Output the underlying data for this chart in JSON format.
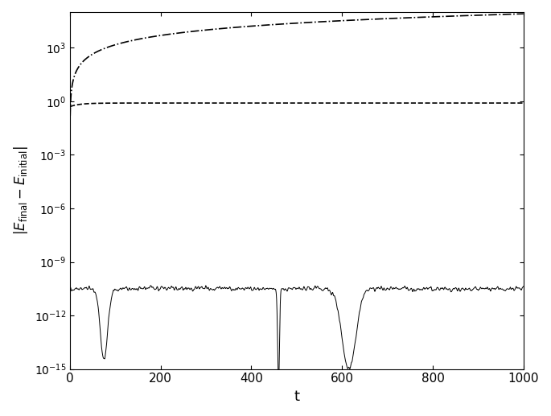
{
  "title": "",
  "xlabel": "t",
  "ylabel": "|E_{final}-E_{initial}|",
  "xlim": [
    0,
    1000
  ],
  "ylim_log": [
    -15,
    5
  ],
  "background_color": "#ffffff",
  "line_color": "#000000",
  "figsize": [
    6.85,
    5.17
  ],
  "dpi": 100,
  "seed": 42,
  "solid_base_log": -10.5,
  "solid_noise_sigma": 5,
  "solid_noise_scale": 0.25
}
